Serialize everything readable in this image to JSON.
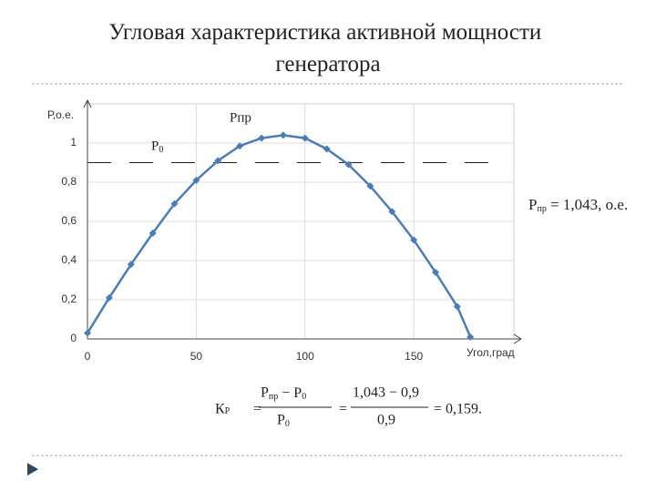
{
  "chart_data": {
    "type": "line",
    "title": "Угловая характеристика активной мощности генератора",
    "x_label": "Угол,град",
    "y_label": "Р,о.е.",
    "x": [
      0,
      10,
      20,
      30,
      40,
      50,
      60,
      70,
      80,
      90,
      100,
      110,
      120,
      130,
      140,
      150,
      160,
      170,
      176
    ],
    "series": [
      {
        "name": "Рпр",
        "color": "#4a7db8",
        "values": [
          0.03,
          0.21,
          0.38,
          0.54,
          0.69,
          0.81,
          0.91,
          0.985,
          1.025,
          1.04,
          1.025,
          0.97,
          0.89,
          0.78,
          0.65,
          0.505,
          0.34,
          0.165,
          0.01
        ]
      }
    ],
    "reference_line": {
      "name": "Р",
      "sub": "0",
      "value": 0.9
    },
    "xlim": [
      0,
      196
    ],
    "ylim": [
      0,
      1.2
    ],
    "xticks": [
      0,
      50,
      100,
      150
    ],
    "yticks": [
      0,
      {
        "value": 0.2,
        "label": "0,2"
      },
      {
        "value": 0.4,
        "label": "0,4"
      },
      {
        "value": 0.6,
        "label": "0,6"
      },
      {
        "value": 0.8,
        "label": "0,8"
      },
      1
    ],
    "grid": true,
    "annotation": {
      "name": "Р",
      "sub": "пр",
      "rest": " = 1,043, о.е."
    },
    "formula": {
      "k": "К",
      "k_sub": "Р",
      "eq": "=",
      "num_a": "Р",
      "num_a_sub": "пр",
      "minus": " − ",
      "num_b": "Р",
      "num_b_sub": "0",
      "den": "Р",
      "den_sub": "0",
      "num2": "1,043 − 0,9",
      "den2": "0,9",
      "result": "= 0,159."
    }
  }
}
